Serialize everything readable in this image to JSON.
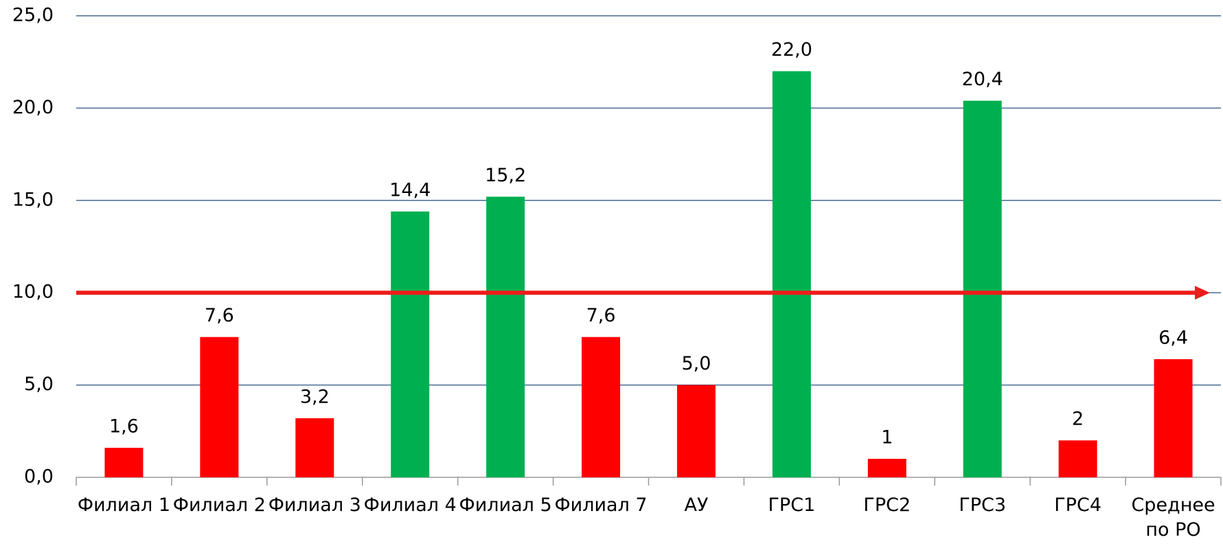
{
  "chart_data": {
    "type": "bar",
    "categories": [
      "Филиал 1",
      "Филиал 2",
      "Филиал 3",
      "Филиал 4",
      "Филиал 5",
      "Филиал 7",
      "АУ",
      "ГРС1",
      "ГРС2",
      "ГРС3",
      "ГРС4",
      "Среднее по РО"
    ],
    "values": [
      1.6,
      7.6,
      3.2,
      14.4,
      15.2,
      7.6,
      5.0,
      22.0,
      1,
      20.4,
      2,
      6.4
    ],
    "value_labels": [
      "1,6",
      "7,6",
      "3,2",
      "14,4",
      "15,2",
      "7,6",
      "5,0",
      "22,0",
      "1",
      "20,4",
      "2",
      "6,4"
    ],
    "colors": [
      "#ff0000",
      "#ff0000",
      "#ff0000",
      "#00b050",
      "#00b050",
      "#ff0000",
      "#ff0000",
      "#00b050",
      "#ff0000",
      "#00b050",
      "#ff0000",
      "#ff0000"
    ],
    "ylim": [
      0,
      25
    ],
    "yticks": [
      {
        "value": 0,
        "label": "0,0"
      },
      {
        "value": 5,
        "label": "5,0"
      },
      {
        "value": 10,
        "label": "10,0"
      },
      {
        "value": 15,
        "label": "15,0"
      },
      {
        "value": 20,
        "label": "20,0"
      },
      {
        "value": 25,
        "label": "25,0"
      }
    ],
    "grid": true,
    "threshold": 10,
    "threshold_color": "#ee1c1c"
  }
}
